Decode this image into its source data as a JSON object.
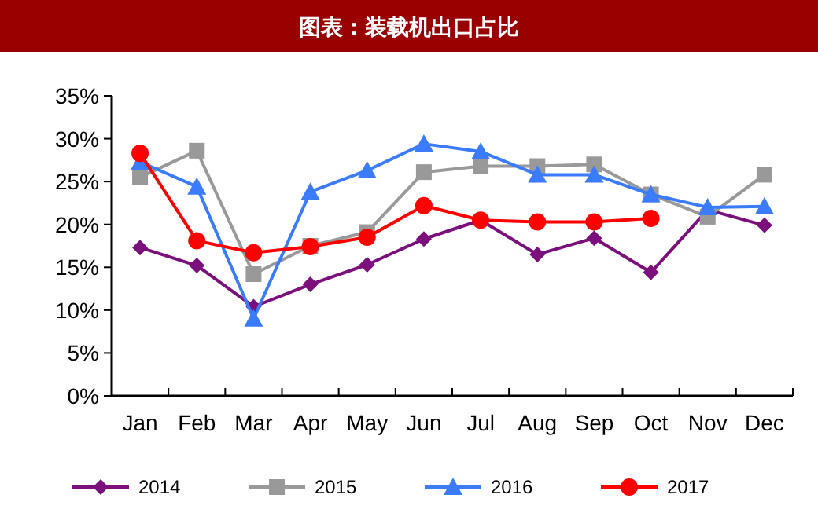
{
  "chart_data": {
    "type": "line",
    "title": "图表：装载机出口占比",
    "categories": [
      "Jan",
      "Feb",
      "Mar",
      "Apr",
      "May",
      "Jun",
      "Jul",
      "Aug",
      "Sep",
      "Oct",
      "Nov",
      "Dec"
    ],
    "series": [
      {
        "name": "2014",
        "color": "#7b0f7b",
        "marker": "diamond",
        "values": [
          17.3,
          15.2,
          10.4,
          13.0,
          15.3,
          18.3,
          20.5,
          16.5,
          18.4,
          14.4,
          21.7,
          19.9
        ]
      },
      {
        "name": "2015",
        "color": "#999999",
        "marker": "square",
        "values": [
          25.5,
          28.6,
          14.2,
          17.5,
          19.1,
          26.1,
          26.8,
          26.8,
          27.0,
          23.5,
          20.9,
          25.8
        ]
      },
      {
        "name": "2016",
        "color": "#3b7bff",
        "marker": "triangle",
        "values": [
          27.3,
          24.4,
          9.0,
          23.8,
          26.3,
          29.4,
          28.5,
          25.8,
          25.8,
          23.5,
          22.0,
          22.1
        ]
      },
      {
        "name": "2017",
        "color": "#ff0000",
        "marker": "circle",
        "values": [
          28.3,
          18.1,
          16.7,
          17.4,
          18.5,
          22.2,
          20.5,
          20.3,
          20.3,
          20.7,
          null,
          null
        ]
      }
    ],
    "ylim": [
      0,
      35
    ],
    "yticks": [
      {
        "value": 0,
        "label": "0%"
      },
      {
        "value": 5,
        "label": "5%"
      },
      {
        "value": 10,
        "label": "10%"
      },
      {
        "value": 15,
        "label": "15%"
      },
      {
        "value": 20,
        "label": "20%"
      },
      {
        "value": 25,
        "label": "25%"
      },
      {
        "value": 30,
        "label": "30%"
      },
      {
        "value": 35,
        "label": "35%"
      }
    ],
    "grid": false,
    "legend": "bottom",
    "line_style": "solid"
  }
}
